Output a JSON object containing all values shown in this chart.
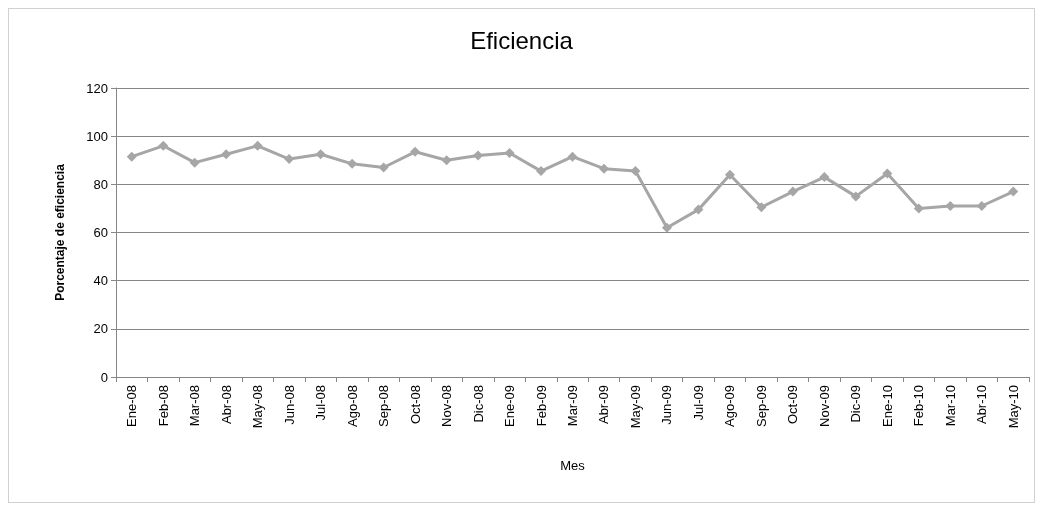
{
  "chart_data": {
    "type": "line",
    "title": "Eficiencia",
    "xlabel": "Mes",
    "ylabel": "Porcentaje de eficiencia",
    "categories": [
      "Ene-08",
      "Feb-08",
      "Mar-08",
      "Abr-08",
      "May-08",
      "Jun-08",
      "Jul-08",
      "Ago-08",
      "Sep-08",
      "Oct-08",
      "Nov-08",
      "Dic-08",
      "Ene-09",
      "Feb-09",
      "Mar-09",
      "Abr-09",
      "May-09",
      "Jun-09",
      "Jul-09",
      "Ago-09",
      "Sep-09",
      "Oct-09",
      "Nov-09",
      "Dic-09",
      "Ene-10",
      "Feb-10",
      "Mar-10",
      "Abr-10",
      "May-10"
    ],
    "series": [
      {
        "color": "#a6a6a6",
        "values": [
          91.5,
          96,
          89,
          92.5,
          96,
          90.5,
          92.5,
          88.5,
          87,
          93.5,
          90,
          92,
          93,
          85.5,
          91.5,
          86.5,
          85.5,
          62,
          69.5,
          84,
          70.5,
          77,
          83,
          75,
          84.5,
          70,
          71,
          71,
          77
        ]
      }
    ],
    "ylim": [
      0,
      120
    ],
    "yticks": [
      0,
      20,
      40,
      60,
      80,
      100,
      120
    ],
    "grid": "y",
    "marker": "diamond",
    "line_style": "solid"
  }
}
